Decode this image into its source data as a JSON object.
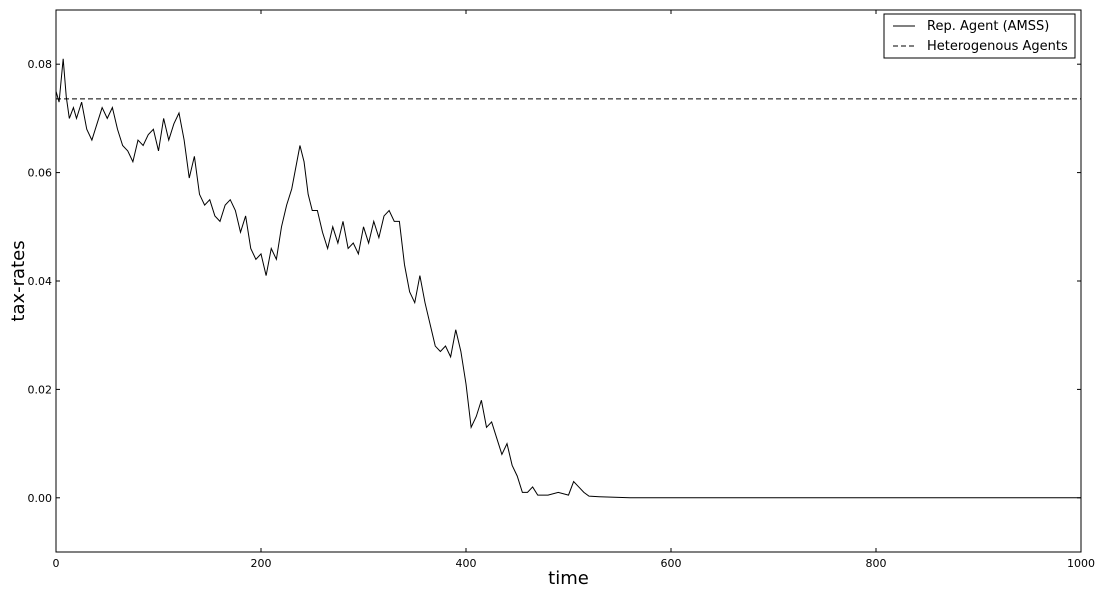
{
  "chart_data": {
    "type": "line",
    "title": "",
    "xlabel": "time",
    "ylabel": "tax-rates",
    "xlim": [
      0,
      1000
    ],
    "ylim": [
      -0.01,
      0.09
    ],
    "grid": false,
    "legend_position": "top-right",
    "x_ticks": [
      0,
      200,
      400,
      600,
      800,
      1000
    ],
    "x_tick_labels": [
      "0",
      "200",
      "400",
      "600",
      "800",
      "1000"
    ],
    "y_ticks": [
      0.0,
      0.02,
      0.04,
      0.06,
      0.08
    ],
    "y_tick_labels": [
      "0.00",
      "0.02",
      "0.04",
      "0.06",
      "0.08"
    ],
    "series": [
      {
        "name": "Rep. Agent (AMSS)",
        "style": "solid",
        "color": "#000000",
        "x": [
          0,
          3,
          7,
          10,
          13,
          17,
          20,
          25,
          30,
          35,
          40,
          45,
          50,
          55,
          60,
          65,
          70,
          75,
          80,
          85,
          90,
          95,
          100,
          105,
          110,
          115,
          120,
          125,
          130,
          135,
          140,
          145,
          150,
          155,
          160,
          165,
          170,
          175,
          180,
          185,
          190,
          195,
          200,
          205,
          210,
          215,
          220,
          225,
          230,
          235,
          238,
          242,
          246,
          250,
          255,
          260,
          265,
          270,
          275,
          280,
          285,
          290,
          295,
          300,
          305,
          310,
          315,
          320,
          325,
          330,
          335,
          340,
          345,
          350,
          355,
          360,
          365,
          370,
          375,
          380,
          385,
          390,
          395,
          400,
          405,
          410,
          415,
          420,
          425,
          430,
          435,
          440,
          445,
          450,
          455,
          460,
          465,
          470,
          480,
          490,
          500,
          505,
          510,
          515,
          520,
          530,
          545,
          560,
          600,
          700,
          800,
          900,
          1000
        ],
        "y": [
          0.075,
          0.073,
          0.081,
          0.074,
          0.07,
          0.072,
          0.07,
          0.073,
          0.068,
          0.066,
          0.069,
          0.072,
          0.07,
          0.072,
          0.068,
          0.065,
          0.064,
          0.062,
          0.066,
          0.065,
          0.067,
          0.068,
          0.064,
          0.07,
          0.066,
          0.069,
          0.071,
          0.066,
          0.059,
          0.063,
          0.056,
          0.054,
          0.055,
          0.052,
          0.051,
          0.054,
          0.055,
          0.053,
          0.049,
          0.052,
          0.046,
          0.044,
          0.045,
          0.041,
          0.046,
          0.044,
          0.05,
          0.054,
          0.057,
          0.062,
          0.065,
          0.062,
          0.056,
          0.053,
          0.053,
          0.049,
          0.046,
          0.05,
          0.047,
          0.051,
          0.046,
          0.047,
          0.045,
          0.05,
          0.047,
          0.051,
          0.048,
          0.052,
          0.053,
          0.051,
          0.051,
          0.043,
          0.038,
          0.036,
          0.041,
          0.036,
          0.032,
          0.028,
          0.027,
          0.028,
          0.026,
          0.031,
          0.027,
          0.021,
          0.013,
          0.015,
          0.018,
          0.013,
          0.014,
          0.011,
          0.008,
          0.01,
          0.006,
          0.004,
          0.001,
          0.001,
          0.002,
          0.0005,
          0.0005,
          0.001,
          0.0005,
          0.003,
          0.002,
          0.001,
          0.0003,
          0.0002,
          0.0001,
          0.0,
          0.0,
          0.0,
          0.0,
          0.0,
          0.0
        ]
      },
      {
        "name": "Heterogenous Agents",
        "style": "dashed",
        "color": "#000000",
        "x": [
          0,
          1000
        ],
        "y": [
          0.0736,
          0.0736
        ]
      }
    ]
  }
}
